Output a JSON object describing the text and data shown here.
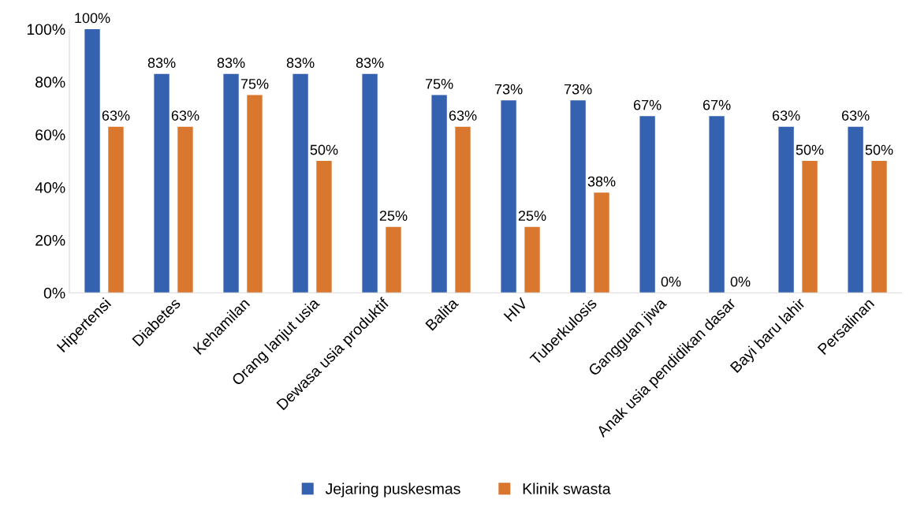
{
  "chart_data": {
    "type": "bar",
    "categories": [
      "Hipertensi",
      "Diabetes",
      "Kehamilan",
      "Orang lanjut usia",
      "Dewasa usia produktif",
      "Balita",
      "HIV",
      "Tuberkulosis",
      "Gangguan jiwa",
      "Anak usia pendidikan dasar",
      "Bayi baru lahir",
      "Persalinan"
    ],
    "series": [
      {
        "name": "Jejaring puskesmas",
        "color": "#3462b0",
        "values": [
          100,
          83,
          83,
          83,
          83,
          75,
          73,
          73,
          67,
          67,
          63,
          63
        ],
        "value_labels": [
          "100%",
          "83%",
          "83%",
          "83%",
          "83%",
          "75%",
          "73%",
          "73%",
          "67%",
          "67%",
          "63%",
          "63%"
        ]
      },
      {
        "name": "Klinik swasta",
        "color": "#d9772f",
        "values": [
          63,
          63,
          75,
          50,
          25,
          63,
          25,
          38,
          0,
          0,
          50,
          50
        ],
        "value_labels": [
          "63%",
          "63%",
          "75%",
          "50%",
          "25%",
          "63%",
          "25%",
          "38%",
          "0%",
          "0%",
          "50%",
          "50%"
        ]
      }
    ],
    "ylim": [
      0,
      100
    ],
    "yticks": [
      {
        "value": 0,
        "label": "0%"
      },
      {
        "value": 20,
        "label": "20%"
      },
      {
        "value": 40,
        "label": "40%"
      },
      {
        "value": 60,
        "label": "60%"
      },
      {
        "value": 80,
        "label": "80%"
      },
      {
        "value": 100,
        "label": "100%"
      }
    ],
    "grid": false,
    "legend": "bottom"
  }
}
